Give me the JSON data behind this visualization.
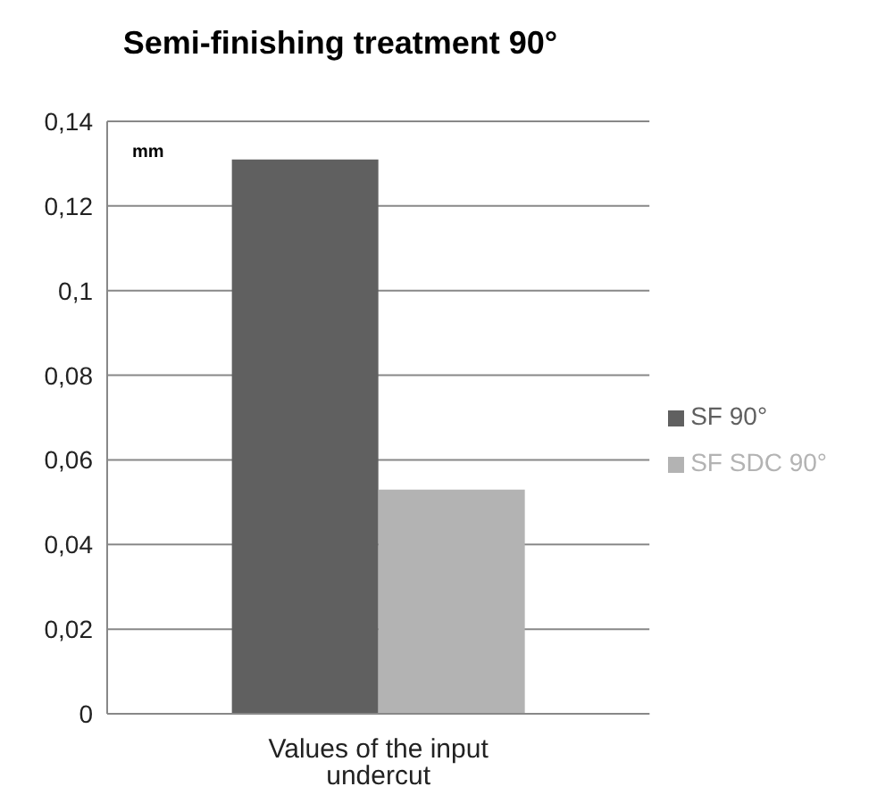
{
  "chart_data": {
    "type": "bar",
    "title": "Semi-finishing treatment 90°",
    "categories": [
      "Values of the input undercut"
    ],
    "series": [
      {
        "name": "SF 90°",
        "color": "#606060",
        "values": [
          0.131
        ]
      },
      {
        "name": "SF SDC 90°",
        "color": "#b3b3b3",
        "values": [
          0.053
        ]
      }
    ],
    "ylim": [
      0,
      0.14
    ],
    "yticks": [
      {
        "value": 0,
        "label": "0"
      },
      {
        "value": 0.02,
        "label": "0,02"
      },
      {
        "value": 0.04,
        "label": "0,04"
      },
      {
        "value": 0.06,
        "label": "0,06"
      },
      {
        "value": 0.08,
        "label": "0,08"
      },
      {
        "value": 0.1,
        "label": "0,1"
      },
      {
        "value": 0.12,
        "label": "0,12"
      },
      {
        "value": 0.14,
        "label": "0,14"
      }
    ],
    "grid": "y",
    "legend": "right",
    "annotations": [
      "mm"
    ]
  }
}
